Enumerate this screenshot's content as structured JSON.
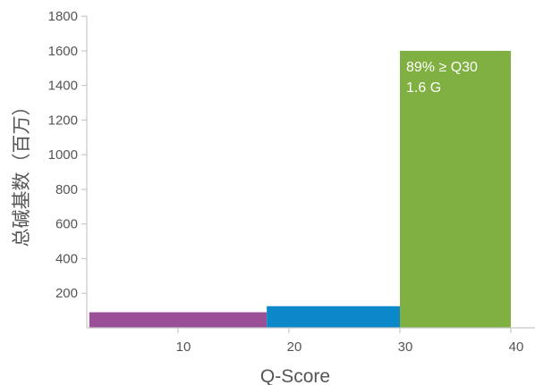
{
  "chart_data": {
    "type": "bar",
    "title": "",
    "xlabel": "Q-Score",
    "ylabel": "总碱基数（百万）",
    "xlim": [
      0,
      42
    ],
    "ylim": [
      0,
      1800
    ],
    "x_ticks": [
      10,
      20,
      30,
      40
    ],
    "y_ticks": [
      200,
      400,
      600,
      800,
      1000,
      1200,
      1400,
      1600,
      1800
    ],
    "grid": false,
    "legend": "none",
    "bars": [
      {
        "x_start": 2,
        "x_end": 18,
        "value": 90,
        "color": "#9b4f96"
      },
      {
        "x_start": 18,
        "x_end": 30,
        "value": 125,
        "color": "#0a88c9"
      },
      {
        "x_start": 30,
        "x_end": 40,
        "value": 1600,
        "color": "#7fb041"
      }
    ],
    "annotations": {
      "line1": "89% ≥ Q30",
      "line2": "1.6 G"
    }
  }
}
